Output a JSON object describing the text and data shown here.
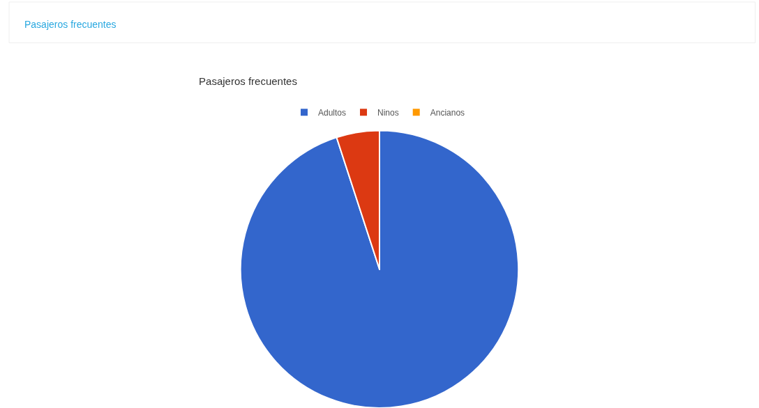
{
  "chart_data": {
    "type": "pie",
    "title": "Pasajeros frecuentes",
    "annotations": [
      "Pasajeros frecuentes"
    ],
    "categories": [
      "Adultos",
      "Ninos",
      "Ancianos"
    ],
    "values": [
      95,
      5,
      0
    ],
    "colors": [
      "#3366cc",
      "#dc3912",
      "#ff9900"
    ],
    "legend": "top"
  }
}
